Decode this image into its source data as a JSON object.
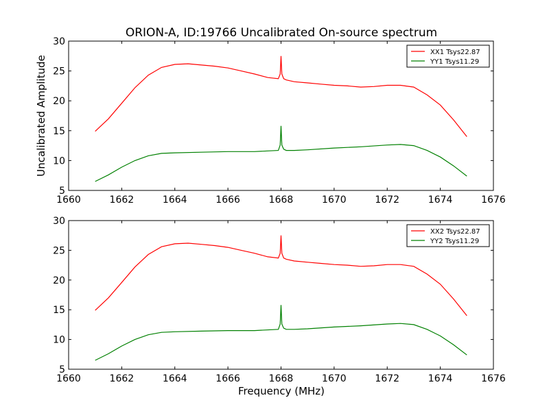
{
  "figure": {
    "title": "ORION-A, ID:19766 Uncalibrated On-source spectrum",
    "ylabel": "Uncalibrated Amplitude",
    "xlabel": "Frequency (MHz)"
  },
  "chart_data": [
    {
      "type": "line",
      "title": "ORION-A, ID:19766 Uncalibrated On-source spectrum",
      "xlabel": "",
      "ylabel": "Uncalibrated Amplitude",
      "xlim": [
        1660,
        1676
      ],
      "ylim": [
        5,
        30
      ],
      "xticks": [
        "1660",
        "1662",
        "1664",
        "1666",
        "1668",
        "1670",
        "1672",
        "1674",
        "1676"
      ],
      "yticks": [
        "5",
        "10",
        "15",
        "20",
        "25",
        "30"
      ],
      "grid": false,
      "legend_position": "top-right",
      "series": [
        {
          "name": "XX1 Tsys22.87",
          "color": "#ff0000",
          "x": [
            1661.0,
            1661.5,
            1662.0,
            1662.5,
            1663.0,
            1663.5,
            1664.0,
            1664.5,
            1665.0,
            1665.5,
            1666.0,
            1666.5,
            1667.0,
            1667.5,
            1667.9,
            1667.97,
            1668.0,
            1668.03,
            1668.1,
            1668.2,
            1668.5,
            1669.0,
            1669.5,
            1670.0,
            1670.5,
            1671.0,
            1671.5,
            1672.0,
            1672.5,
            1673.0,
            1673.5,
            1674.0,
            1674.5,
            1675.0
          ],
          "y": [
            14.9,
            17.0,
            19.6,
            22.2,
            24.3,
            25.6,
            26.1,
            26.2,
            26.0,
            25.8,
            25.5,
            25.0,
            24.5,
            23.9,
            23.7,
            24.5,
            27.5,
            24.5,
            23.7,
            23.5,
            23.2,
            23.0,
            22.8,
            22.6,
            22.5,
            22.3,
            22.4,
            22.6,
            22.6,
            22.3,
            21.0,
            19.3,
            16.8,
            14.0
          ]
        },
        {
          "name": "YY1 Tsys11.29",
          "color": "#008000",
          "x": [
            1661.0,
            1661.5,
            1662.0,
            1662.5,
            1663.0,
            1663.5,
            1664.0,
            1665.0,
            1666.0,
            1667.0,
            1667.9,
            1667.97,
            1668.0,
            1668.03,
            1668.1,
            1668.2,
            1668.5,
            1669.0,
            1670.0,
            1671.0,
            1672.0,
            1672.5,
            1673.0,
            1673.5,
            1674.0,
            1674.5,
            1675.0
          ],
          "y": [
            6.5,
            7.6,
            8.9,
            10.0,
            10.8,
            11.2,
            11.3,
            11.4,
            11.5,
            11.5,
            11.7,
            12.6,
            15.8,
            12.6,
            11.9,
            11.7,
            11.7,
            11.8,
            12.1,
            12.3,
            12.6,
            12.7,
            12.5,
            11.7,
            10.6,
            9.1,
            7.4
          ]
        }
      ]
    },
    {
      "type": "line",
      "title": "",
      "xlabel": "Frequency (MHz)",
      "ylabel": "",
      "xlim": [
        1660,
        1676
      ],
      "ylim": [
        5,
        30
      ],
      "xticks": [
        "1660",
        "1662",
        "1664",
        "1666",
        "1668",
        "1670",
        "1672",
        "1674",
        "1676"
      ],
      "yticks": [
        "5",
        "10",
        "15",
        "20",
        "25",
        "30"
      ],
      "grid": false,
      "legend_position": "top-right",
      "series": [
        {
          "name": "XX2 Tsys22.87",
          "color": "#ff0000",
          "x": [
            1661.0,
            1661.5,
            1662.0,
            1662.5,
            1663.0,
            1663.5,
            1664.0,
            1664.5,
            1665.0,
            1665.5,
            1666.0,
            1666.5,
            1667.0,
            1667.5,
            1667.9,
            1667.97,
            1668.0,
            1668.03,
            1668.1,
            1668.2,
            1668.5,
            1669.0,
            1669.5,
            1670.0,
            1670.5,
            1671.0,
            1671.5,
            1672.0,
            1672.5,
            1673.0,
            1673.5,
            1674.0,
            1674.5,
            1675.0
          ],
          "y": [
            14.9,
            17.0,
            19.6,
            22.2,
            24.3,
            25.6,
            26.1,
            26.2,
            26.0,
            25.8,
            25.5,
            25.0,
            24.5,
            23.9,
            23.7,
            24.5,
            27.5,
            24.5,
            23.7,
            23.5,
            23.2,
            23.0,
            22.8,
            22.6,
            22.5,
            22.3,
            22.4,
            22.6,
            22.6,
            22.3,
            21.0,
            19.3,
            16.8,
            14.0
          ]
        },
        {
          "name": "YY2 Tsys11.29",
          "color": "#008000",
          "x": [
            1661.0,
            1661.5,
            1662.0,
            1662.5,
            1663.0,
            1663.5,
            1664.0,
            1665.0,
            1666.0,
            1667.0,
            1667.9,
            1667.97,
            1668.0,
            1668.03,
            1668.1,
            1668.2,
            1668.5,
            1669.0,
            1670.0,
            1671.0,
            1672.0,
            1672.5,
            1673.0,
            1673.5,
            1674.0,
            1674.5,
            1675.0
          ],
          "y": [
            6.5,
            7.6,
            8.9,
            10.0,
            10.8,
            11.2,
            11.3,
            11.4,
            11.5,
            11.5,
            11.7,
            12.6,
            15.8,
            12.6,
            11.9,
            11.7,
            11.7,
            11.8,
            12.1,
            12.3,
            12.6,
            12.7,
            12.5,
            11.7,
            10.6,
            9.1,
            7.4
          ]
        }
      ]
    }
  ]
}
